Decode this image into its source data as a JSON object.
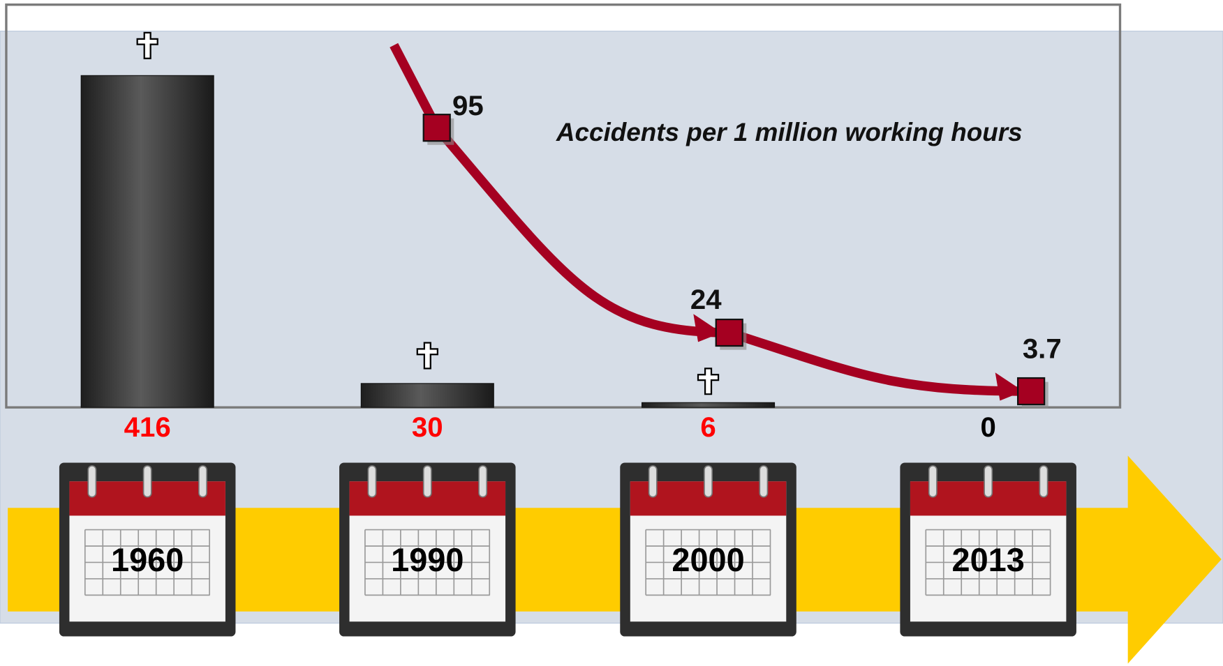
{
  "chart_data": {
    "type": "bar",
    "annotation": "Accidents per 1 million working hours",
    "categories": [
      "1960",
      "1990",
      "2000",
      "2013"
    ],
    "series": [
      {
        "type": "bar",
        "color": "#3a3a3a",
        "values": [
          416,
          30,
          6,
          0
        ],
        "value_label_colors": [
          "#ff0000",
          "#ff0000",
          "#ff0000",
          "#000000"
        ]
      },
      {
        "type": "line",
        "color": "#a50021",
        "values": [
          null,
          95,
          24,
          3.7
        ]
      }
    ]
  }
}
